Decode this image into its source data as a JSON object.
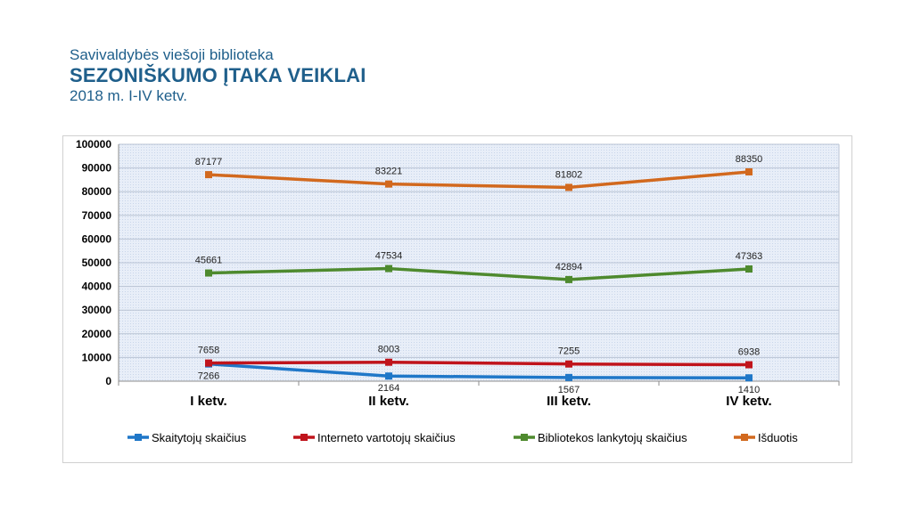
{
  "header": {
    "subtitle": "Savivaldybės viešoji biblioteka",
    "title": "SEZONIŠKUMO ĮTAKA VEIKLAI",
    "period": "2018 m. I-IV ketv."
  },
  "chart_data": {
    "type": "line",
    "categories": [
      "I ketv.",
      "II ketv.",
      "III ketv.",
      "IV ketv."
    ],
    "ylim": [
      0,
      100000
    ],
    "yticks": [
      0,
      10000,
      20000,
      30000,
      40000,
      50000,
      60000,
      70000,
      80000,
      90000,
      100000
    ],
    "ytick_labels": [
      "0",
      "10000",
      "20000",
      "30000",
      "40000",
      "50000",
      "60000",
      "70000",
      "80000",
      "90000",
      "100000"
    ],
    "grid": true,
    "legend": "bottom",
    "series": [
      {
        "name": "Skaitytojų skaičius",
        "color": "#1f77c8",
        "values": [
          7266,
          2164,
          1567,
          1410
        ],
        "labels": [
          "7266",
          "2164",
          "1567",
          "1410"
        ],
        "label_position": "below"
      },
      {
        "name": "Interneto vartotojų skaičius",
        "color": "#c0141c",
        "values": [
          7658,
          8003,
          7255,
          6938
        ],
        "labels": [
          "7658",
          "8003",
          "7255",
          "6938"
        ],
        "label_position": "above"
      },
      {
        "name": "Bibliotekos lankytojų skaičius",
        "color": "#4e8a2e",
        "values": [
          45661,
          47534,
          42894,
          47363
        ],
        "labels": [
          "45661",
          "47534",
          "42894",
          "47363"
        ],
        "label_position": "above"
      },
      {
        "name": "Išduotis",
        "color": "#d2691e",
        "values": [
          87177,
          83221,
          81802,
          88350
        ],
        "labels": [
          "87177",
          "83221",
          "81802",
          "88350"
        ],
        "label_position": "above"
      }
    ]
  }
}
